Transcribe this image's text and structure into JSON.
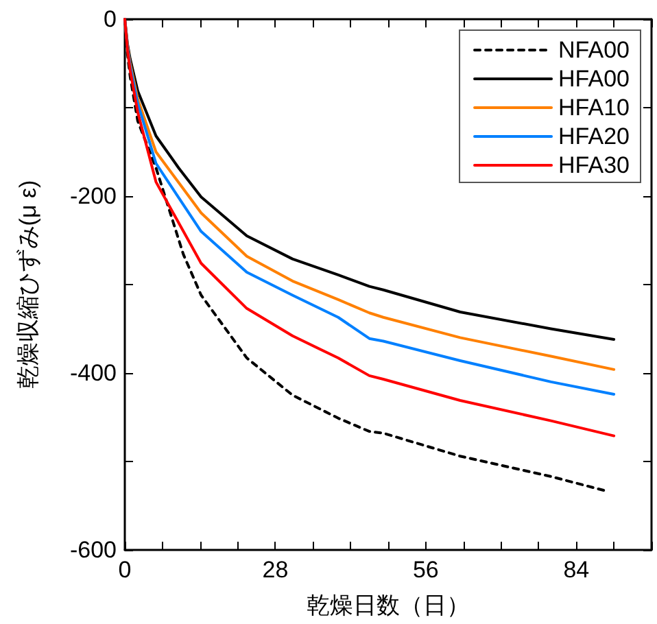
{
  "chart_data": {
    "type": "line",
    "xlabel": "乾燥日数（日）",
    "ylabel": "乾燥収縮ひずみ(μ ε)",
    "xlim": [
      0,
      98
    ],
    "xticks": [
      0,
      {
        "value": 7,
        "label": null
      },
      {
        "value": 14,
        "label": null
      },
      {
        "value": 21,
        "label": null
      },
      28,
      {
        "value": 35,
        "label": null
      },
      {
        "value": 42,
        "label": null
      },
      {
        "value": 49,
        "label": null
      },
      56,
      {
        "value": 63,
        "label": null
      },
      {
        "value": 70,
        "label": null
      },
      {
        "value": 77,
        "label": null
      },
      84,
      {
        "value": 91,
        "label": null
      },
      {
        "value": 98,
        "label": null
      }
    ],
    "ylim": [
      -600,
      0
    ],
    "yticks": [
      -600,
      {
        "value": -500,
        "label": null
      },
      -400,
      {
        "value": -300,
        "label": null
      },
      -200,
      {
        "value": -100,
        "label": null
      },
      0
    ],
    "legend": "top right",
    "grid": false,
    "marker": "none",
    "series": [
      {
        "name": "NFA00",
        "color": "#000000",
        "line_style": "dashed",
        "x": [
          0,
          0.5,
          1,
          2.4,
          5.8,
          10.9,
          14.2,
          22.7,
          31.2,
          39.7,
          45.5,
          48.1,
          62.4,
          79.3,
          90
        ],
        "values": [
          0,
          -40,
          -65,
          -115,
          -168,
          -266,
          -312,
          -383,
          -425,
          -451,
          -466,
          -468,
          -494,
          -517,
          -534
        ]
      },
      {
        "name": "HFA00",
        "color": "#000000",
        "line_style": "solid",
        "x": [
          0,
          0.5,
          1,
          2.4,
          5.8,
          10,
          14.2,
          22.7,
          31.2,
          39.7,
          45.5,
          48.1,
          62.4,
          79.3,
          91
        ],
        "values": [
          0,
          -28,
          -45,
          -81,
          -132,
          -168,
          -201,
          -245,
          -271,
          -289,
          -302,
          -306,
          -331,
          -350,
          -362
        ]
      },
      {
        "name": "HFA10",
        "color": "#ff8000",
        "line_style": "solid",
        "x": [
          0,
          0.5,
          1,
          2.4,
          5.8,
          14.2,
          22.7,
          31.2,
          39.7,
          45.5,
          48.1,
          62.4,
          79.3,
          91
        ],
        "values": [
          0,
          -30,
          -50,
          -90,
          -150,
          -219,
          -268,
          -296,
          -317,
          -332,
          -337,
          -360,
          -381,
          -396
        ]
      },
      {
        "name": "HFA20",
        "color": "#0080ff",
        "line_style": "solid",
        "x": [
          0,
          0.5,
          1,
          2.4,
          5.8,
          14.2,
          22.7,
          31.2,
          39.7,
          45.5,
          48.1,
          62.4,
          79.3,
          91
        ],
        "values": [
          0,
          -32,
          -53,
          -95,
          -163,
          -240,
          -286,
          -312,
          -337,
          -361,
          -364,
          -386,
          -410,
          -424
        ]
      },
      {
        "name": "HFA30",
        "color": "#ff0000",
        "line_style": "solid",
        "x": [
          0,
          0.5,
          1,
          2.4,
          5.8,
          14.2,
          22.7,
          31.2,
          39.7,
          45.5,
          48.1,
          62.4,
          79.3,
          91
        ],
        "values": [
          0,
          -35,
          -58,
          -105,
          -184,
          -276,
          -327,
          -358,
          -383,
          -403,
          -407,
          -431,
          -454,
          -471
        ]
      }
    ]
  }
}
